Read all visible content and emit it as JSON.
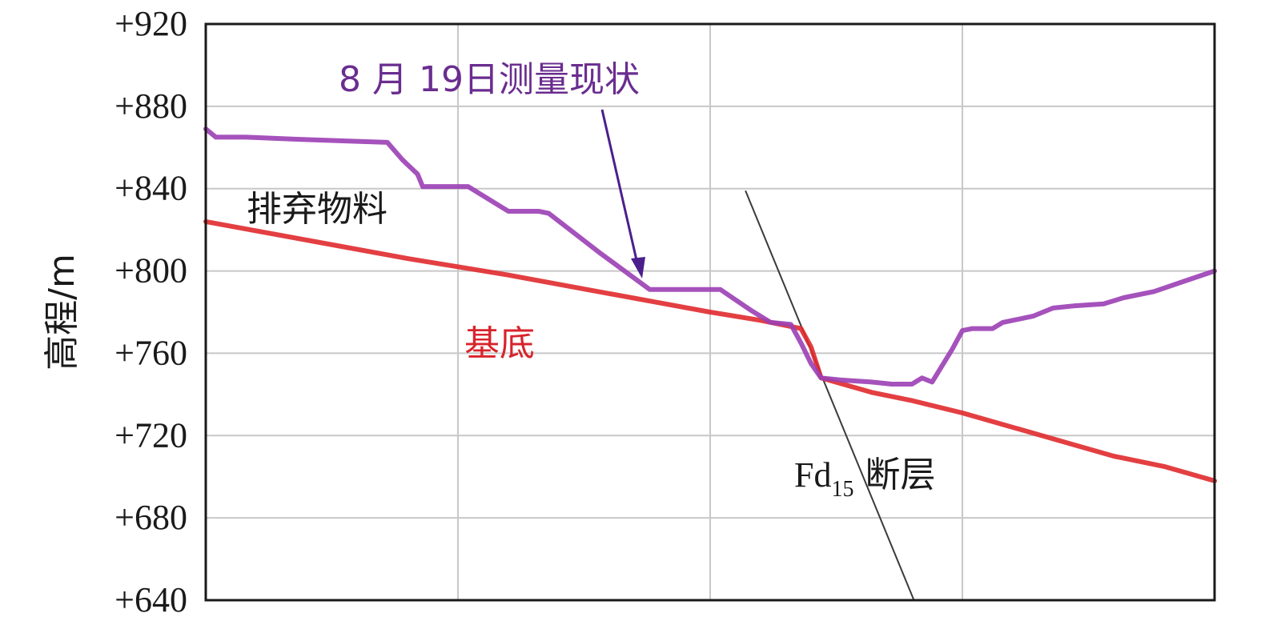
{
  "chart_data": {
    "type": "line",
    "ylabel": "高程/m",
    "ylim": [
      640,
      920
    ],
    "y_ticks": [
      "+920",
      "+880",
      "+840",
      "+800",
      "+760",
      "+720",
      "+680",
      "+640"
    ],
    "y_tick_values": [
      920,
      880,
      840,
      800,
      760,
      720,
      680,
      640
    ],
    "xlim": [
      0,
      100
    ],
    "x_grid": [
      25,
      50,
      75
    ],
    "grid": true,
    "series": [
      {
        "name": "8 月 19日测量现状",
        "color": "#9b3fb5",
        "points": [
          [
            0,
            869
          ],
          [
            1,
            865
          ],
          [
            4,
            865
          ],
          [
            9,
            864
          ],
          [
            15,
            863
          ],
          [
            18,
            862.5
          ],
          [
            19.5,
            854
          ],
          [
            21,
            847
          ],
          [
            21.5,
            841
          ],
          [
            23,
            841
          ],
          [
            26,
            841
          ],
          [
            29,
            832
          ],
          [
            30,
            829
          ],
          [
            33,
            829
          ],
          [
            34,
            828
          ],
          [
            39,
            809
          ],
          [
            44,
            791
          ],
          [
            46,
            791
          ],
          [
            51,
            791
          ],
          [
            54,
            781
          ],
          [
            56,
            775
          ],
          [
            58,
            774
          ],
          [
            59,
            765
          ],
          [
            60,
            755
          ],
          [
            61,
            748
          ],
          [
            63,
            747
          ],
          [
            66,
            746
          ],
          [
            68,
            745
          ],
          [
            70,
            745
          ],
          [
            71,
            748
          ],
          [
            72,
            746
          ],
          [
            74,
            762
          ],
          [
            75,
            771
          ],
          [
            76,
            772
          ],
          [
            78,
            772
          ],
          [
            79,
            775
          ],
          [
            82,
            778
          ],
          [
            84,
            782
          ],
          [
            86,
            783
          ],
          [
            89,
            784
          ],
          [
            91,
            787
          ],
          [
            94,
            790
          ],
          [
            97,
            795
          ],
          [
            100,
            800
          ]
        ]
      },
      {
        "name": "基底",
        "color": "#e02a2e",
        "points": [
          [
            0,
            824
          ],
          [
            10,
            815
          ],
          [
            20,
            806
          ],
          [
            30,
            798
          ],
          [
            40,
            789
          ],
          [
            50,
            780
          ],
          [
            55,
            776
          ],
          [
            59,
            772
          ],
          [
            60,
            763
          ],
          [
            61,
            748
          ],
          [
            66,
            741
          ],
          [
            70,
            737
          ],
          [
            75,
            731
          ],
          [
            80,
            724
          ],
          [
            85,
            717
          ],
          [
            90,
            710
          ],
          [
            95,
            705
          ],
          [
            100,
            698
          ]
        ]
      }
    ],
    "fault": {
      "color": "#3a3a3a",
      "label_main": "Fd",
      "label_sub": "15",
      "label_suffix": "断层",
      "points": [
        [
          53.5,
          839
        ],
        [
          70.2,
          640
        ]
      ]
    },
    "annotations": [
      {
        "text": "8 月 19日测量现状",
        "color": "#6a2d8f"
      },
      {
        "text": "排弃物料",
        "color": "#1a1a1a"
      },
      {
        "text": "基底",
        "color": "#d8242c"
      }
    ]
  }
}
